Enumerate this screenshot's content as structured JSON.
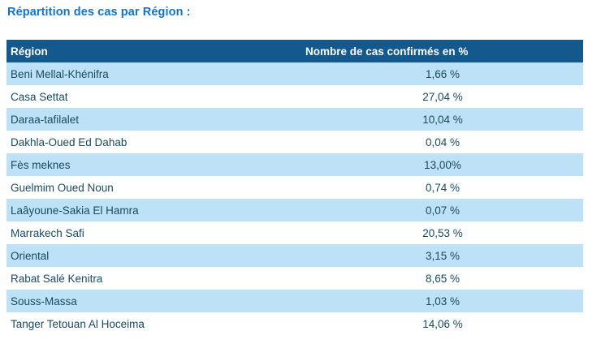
{
  "page": {
    "title": "Répartition des cas par Région :"
  },
  "colors": {
    "title-color": "#1274C5",
    "header-bg": "#14598E",
    "header-text": "#FFFFFF",
    "stripe-bg": "#BDE2F7",
    "row-bg": "#FFFFFF",
    "cell-text": "#1A4A5F",
    "page-bg": "#FFFFFF"
  },
  "table": {
    "headers": {
      "region": "Région",
      "value": "Nombre de cas confirmés en %"
    },
    "rows": [
      {
        "region": "Beni Mellal-Khénifra",
        "value": "1,66 %"
      },
      {
        "region": "Casa Settat",
        "value": "27,04 %"
      },
      {
        "region": "Daraa-tafilalet",
        "value": "10,04 %"
      },
      {
        "region": "Dakhla-Oued Ed Dahab",
        "value": "0,04 %"
      },
      {
        "region": "Fès meknes",
        "value": "13,00%"
      },
      {
        "region": "Guelmim Oued Noun",
        "value": "0,74 %"
      },
      {
        "region": "Laâyoune-Sakia El Hamra",
        "value": "0,07 %"
      },
      {
        "region": "Marrakech Safi",
        "value": "20,53 %"
      },
      {
        "region": "Oriental",
        "value": "3,15 %"
      },
      {
        "region": "Rabat Salé Kenitra",
        "value": "8,65 %"
      },
      {
        "region": "Souss-Massa",
        "value": "1,03 %"
      },
      {
        "region": "Tanger Tetouan Al Hoceima",
        "value": "14,06 %"
      }
    ]
  },
  "chart_data": {
    "type": "table",
    "title": "Répartition des cas par Région",
    "columns": [
      "Région",
      "Nombre de cas confirmés en %"
    ],
    "categories": [
      "Beni Mellal-Khénifra",
      "Casa Settat",
      "Daraa-tafilalet",
      "Dakhla-Oued Ed Dahab",
      "Fès meknes",
      "Guelmim Oued Noun",
      "Laâyoune-Sakia El Hamra",
      "Marrakech Safi",
      "Oriental",
      "Rabat Salé Kenitra",
      "Souss-Massa",
      "Tanger Tetouan Al Hoceima"
    ],
    "values": [
      1.66,
      27.04,
      10.04,
      0.04,
      13.0,
      0.74,
      0.07,
      20.53,
      3.15,
      8.65,
      1.03,
      14.06
    ],
    "value_unit": "%"
  }
}
